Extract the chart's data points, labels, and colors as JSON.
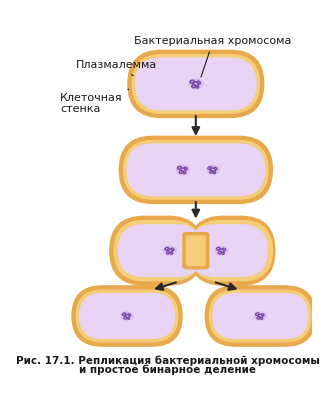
{
  "bg_color": "#ffffff",
  "cell_wall_color": "#E8A84C",
  "cell_wall_inner_color": "#F5CE7A",
  "membrane_color": "#D9B8E8",
  "membrane_inner_color": "#EAD4F5",
  "chromosome_color": "#7A4BAA",
  "chromosome_fill": "#C8A8E0",
  "divider_color": "#9B6FC0",
  "arrow_color": "#2a2a2a",
  "label_color": "#1a1a1a",
  "title_line1": "Рис. 17.1. Репликация бактериальной хромосомы",
  "title_line2": "и простое бинарное деление",
  "label_bact_chrom": "Бактериальная хромосома",
  "label_plasma": "Плазмалемма",
  "label_cell_wall": "Клеточная\nстенка",
  "figsize": [
    3.35,
    4.0
  ],
  "dpi": 100
}
